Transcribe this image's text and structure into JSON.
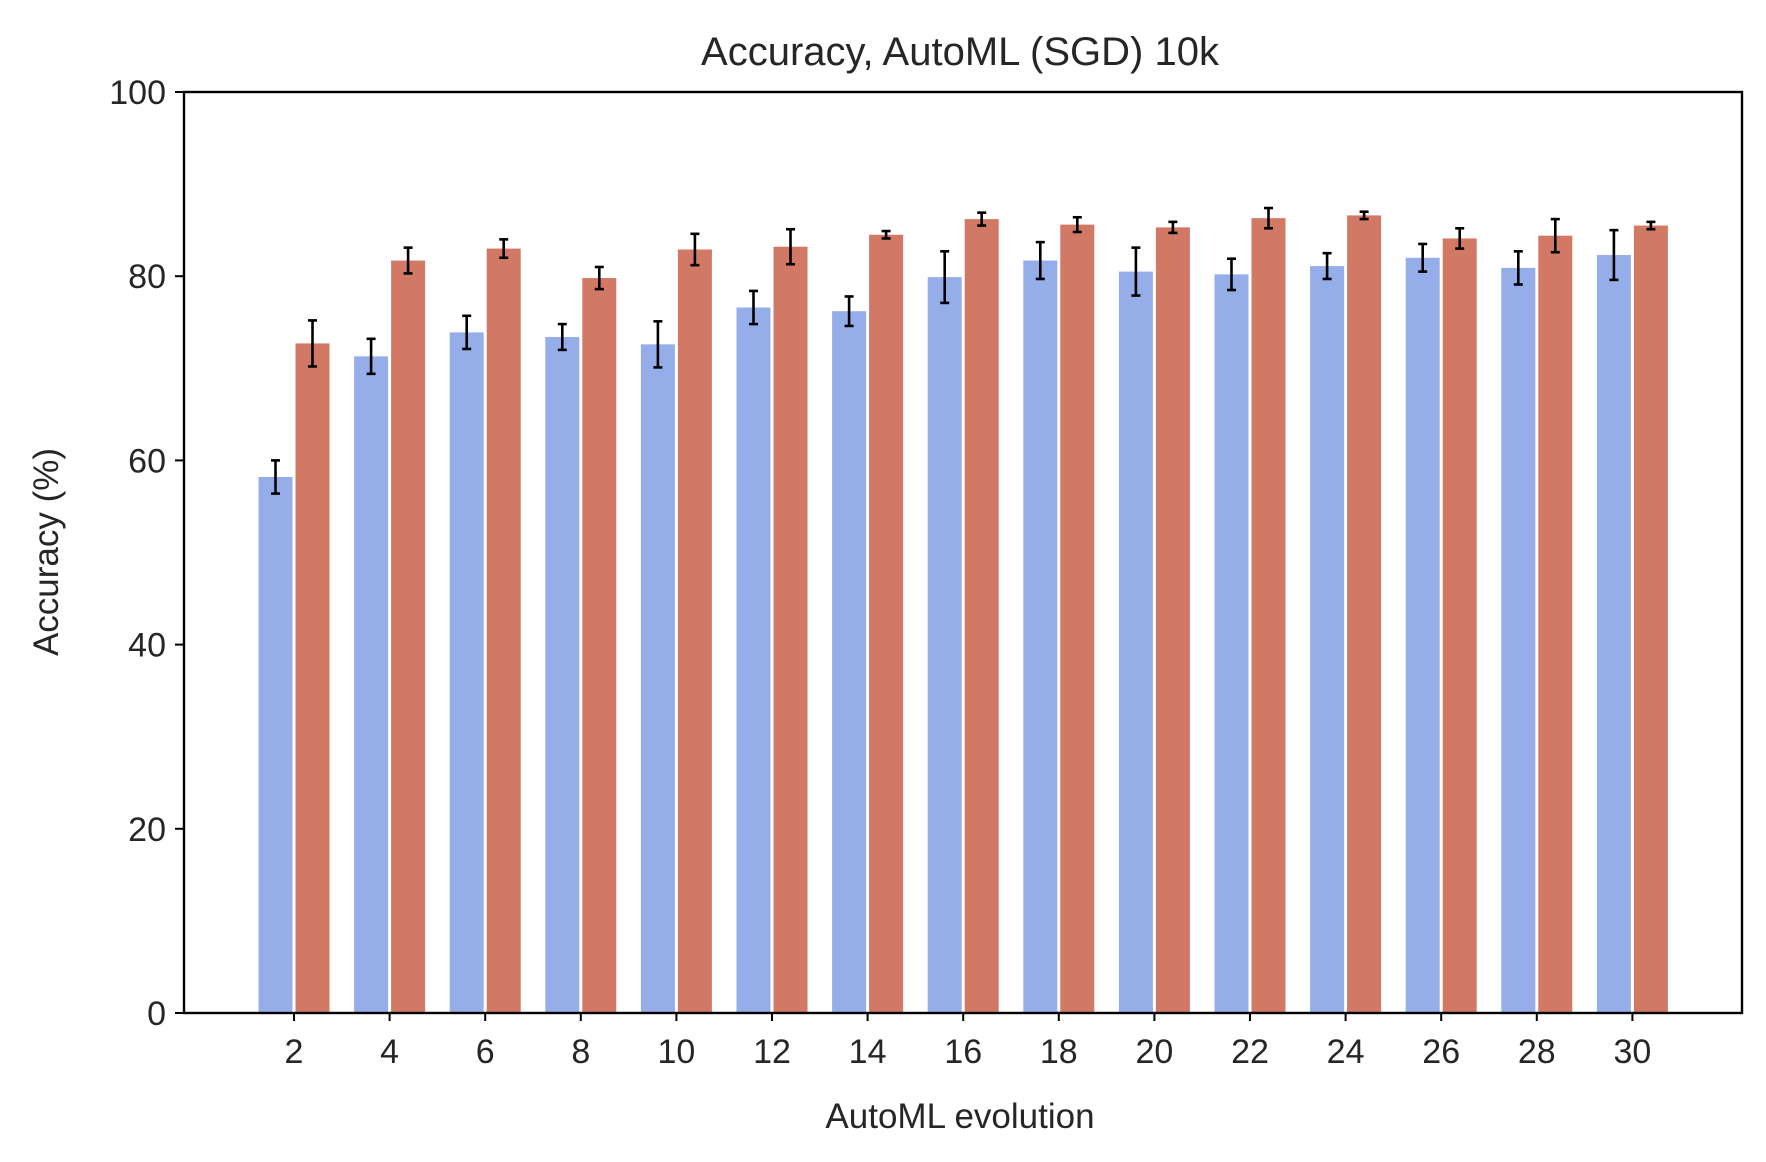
{
  "chart_data": {
    "type": "bar",
    "title": "Accuracy, AutoML (SGD) 10k",
    "xlabel": "AutoML evolution",
    "ylabel": "Accuracy (%)",
    "ylim": [
      0,
      100
    ],
    "yticks": [
      0,
      20,
      40,
      60,
      80,
      100
    ],
    "categories": [
      "2",
      "4",
      "6",
      "8",
      "10",
      "12",
      "14",
      "16",
      "18",
      "20",
      "22",
      "24",
      "26",
      "28",
      "30"
    ],
    "grid": false,
    "legend": "none",
    "series": [
      {
        "color": "#95aeea",
        "values": [
          58.2,
          71.3,
          73.9,
          73.4,
          72.6,
          76.6,
          76.2,
          79.9,
          81.7,
          80.5,
          80.2,
          81.1,
          82.0,
          80.9,
          82.3
        ],
        "errors": [
          1.8,
          1.9,
          1.8,
          1.4,
          2.5,
          1.8,
          1.6,
          2.8,
          2.0,
          2.6,
          1.7,
          1.4,
          1.5,
          1.8,
          2.7
        ]
      },
      {
        "color": "#d27966",
        "values": [
          72.7,
          81.7,
          83.0,
          79.8,
          82.9,
          83.2,
          84.5,
          86.2,
          85.6,
          85.3,
          86.3,
          86.6,
          84.1,
          84.4,
          85.5
        ],
        "errors": [
          2.5,
          1.4,
          1.0,
          1.2,
          1.7,
          1.9,
          0.4,
          0.7,
          0.8,
          0.6,
          1.1,
          0.4,
          1.1,
          1.8,
          0.4
        ]
      }
    ]
  }
}
